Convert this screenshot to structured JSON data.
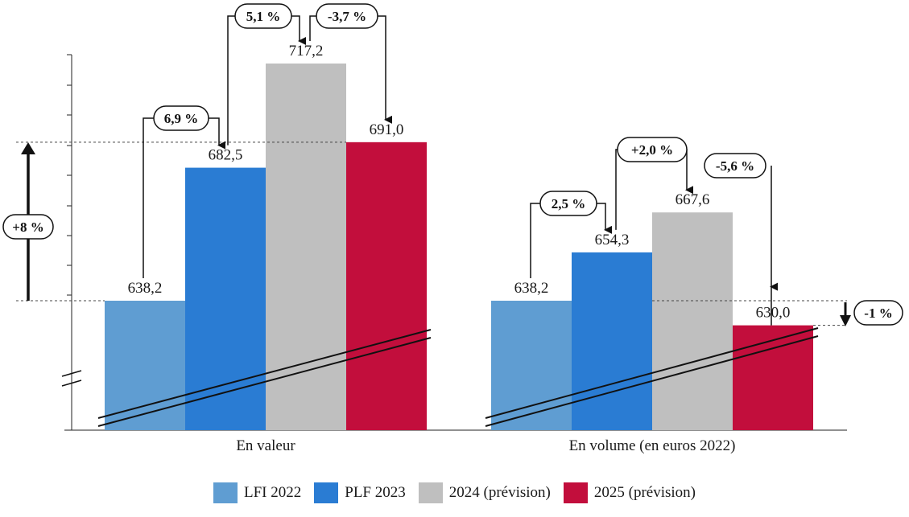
{
  "chart_data": {
    "type": "bar",
    "categories": [
      "En valeur",
      "En volume (en euros 2022)"
    ],
    "series": [
      {
        "name": "LFI 2022",
        "color": "#5f9dd2",
        "values": [
          638.2,
          638.2
        ],
        "labels": [
          "638,2",
          "638,2"
        ]
      },
      {
        "name": "PLF 2023",
        "color": "#2a7cd3",
        "values": [
          682.5,
          654.3
        ],
        "labels": [
          "682,5",
          "654,3"
        ]
      },
      {
        "name": "2024 (prévision)",
        "color": "#bfbfbf",
        "values": [
          717.2,
          667.6
        ],
        "labels": [
          "717,2",
          "667,6"
        ]
      },
      {
        "name": "2025 (prévision)",
        "color": "#c20e3c",
        "values": [
          691.0,
          630.0
        ],
        "labels": [
          "691,0",
          "630,0"
        ]
      }
    ],
    "annotations": {
      "valeur_changes": [
        "6,9 %",
        "5,1 %",
        "-3,7 %"
      ],
      "volume_changes": [
        "2,5 %",
        "+2,0 %",
        "-5,6 %"
      ],
      "valeur_total": "+8 %",
      "volume_total": "-1 %"
    },
    "axis_break": true,
    "grid": false,
    "legend_position": "bottom"
  }
}
